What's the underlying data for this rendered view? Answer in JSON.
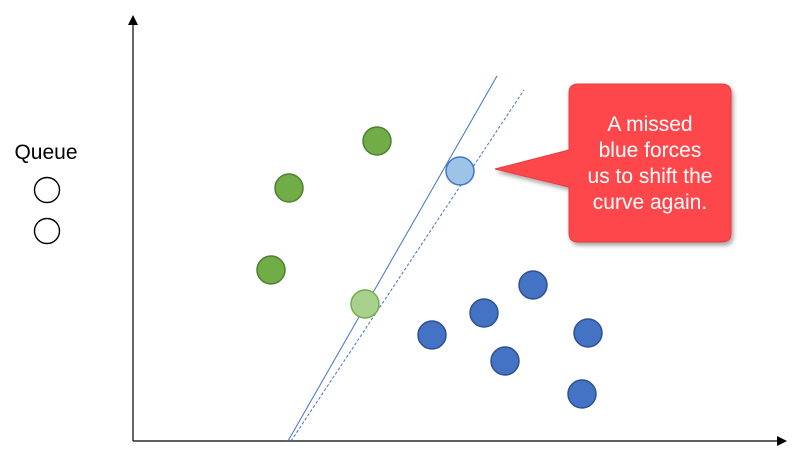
{
  "queue": {
    "label": "Queue",
    "slot_count": 2
  },
  "callout": {
    "lines": [
      "A missed",
      "blue forces",
      "us to shift the",
      "curve again."
    ],
    "color": "#fe474c",
    "text_color": "#ffffff"
  },
  "colors": {
    "green": "#70ad47",
    "green_stroke": "#507e32",
    "green_faded": "#a9d18e",
    "blue": "#4472c4",
    "blue_stroke": "#2f528f",
    "blue_faded": "#9dc3e6",
    "line": "#4472c4"
  },
  "points": {
    "green": [
      {
        "label": "green-point-1"
      },
      {
        "label": "green-point-2"
      },
      {
        "label": "green-point-3"
      }
    ],
    "blue": [
      {
        "label": "blue-point-1"
      },
      {
        "label": "blue-point-2"
      },
      {
        "label": "blue-point-3"
      },
      {
        "label": "blue-point-4"
      },
      {
        "label": "blue-point-5"
      },
      {
        "label": "blue-point-6"
      }
    ]
  }
}
